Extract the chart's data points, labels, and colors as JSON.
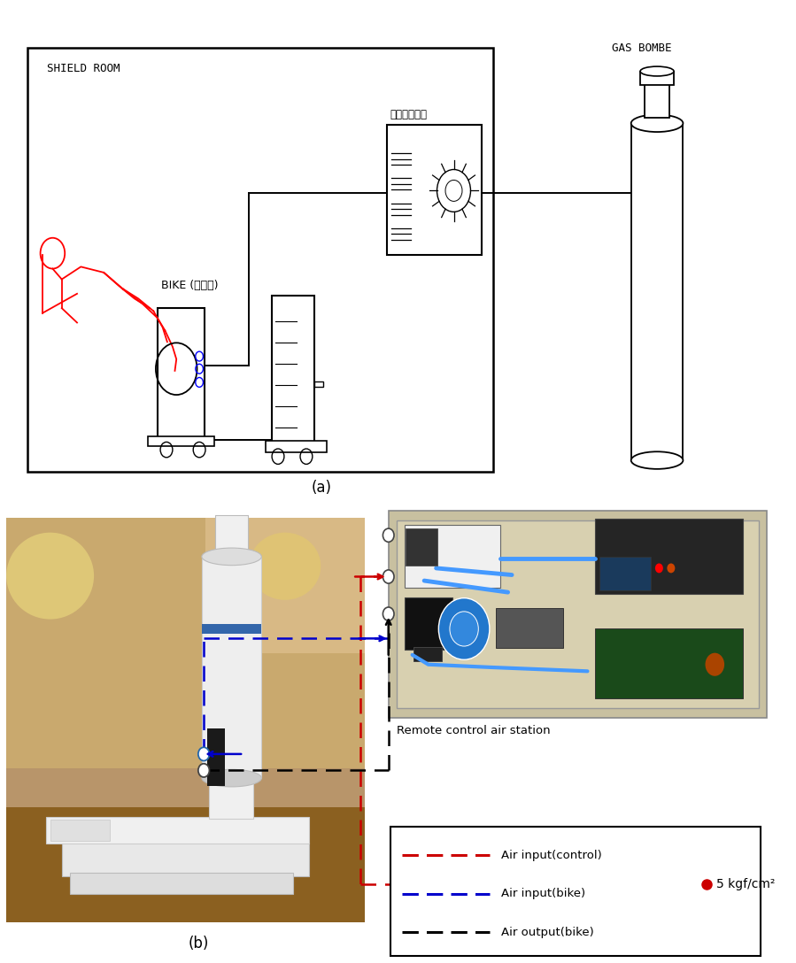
{
  "fig_width": 8.99,
  "fig_height": 10.88,
  "bg_color": "#ffffff",
  "panel_a": {
    "label": "(a)",
    "shield_room_label": "SHIELD ROOM",
    "bike_label": "BIKE (비자성)",
    "pressure_label": "압력조정장치",
    "gas_label": "GAS BOMBE"
  },
  "panel_b": {
    "label": "(b)",
    "remote_label": "Remote control air station",
    "pressure_val": "5 kgf/cm²",
    "legend_items": [
      {
        "color": "#cc0000",
        "label": "Air input(control)"
      },
      {
        "color": "#0000cc",
        "label": "Air input(bike)"
      },
      {
        "color": "#000000",
        "label": "Air output(bike)"
      }
    ]
  }
}
